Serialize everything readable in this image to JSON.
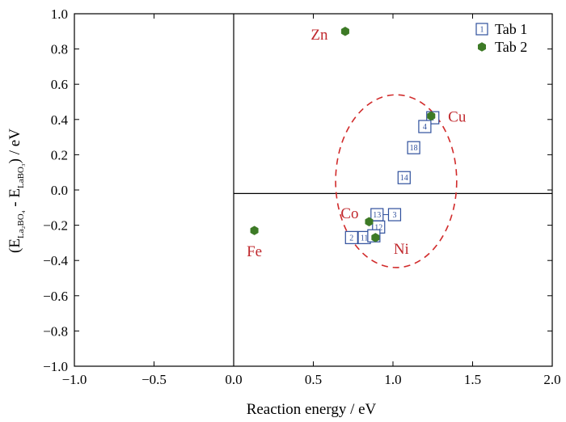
{
  "chart_data": {
    "type": "scatter",
    "title": "",
    "xlabel": "Reaction energy / eV",
    "ylabel": {
      "prefix": "(E",
      "sub1": "La₂BO₄",
      "mid": " - E",
      "sub2": "LaBO₃",
      "suffix": ") / eV"
    },
    "xlim": [
      -1.0,
      2.0
    ],
    "ylim": [
      -1.0,
      1.0
    ],
    "xticks": [
      -1.0,
      -0.5,
      0.0,
      0.5,
      1.0,
      1.5,
      2.0
    ],
    "xtick_labels": [
      "−1.0",
      "−0.5",
      "0.0",
      "0.5",
      "1.0",
      "1.5",
      "2.0"
    ],
    "yticks": [
      1.0,
      0.8,
      0.6,
      0.4,
      0.2,
      0.0,
      -0.2,
      -0.4,
      -0.6,
      -0.8,
      -1.0
    ],
    "ytick_labels": [
      "1.0",
      "0.8",
      "0.6",
      "0.4",
      "0.2",
      "0.0",
      "−0.2",
      "−0.4",
      "−0.6",
      "−0.8",
      "−1.0"
    ],
    "grid": false,
    "legend_position": "top-right",
    "reference_lines": {
      "x": 0.0,
      "y": -0.02
    },
    "series": [
      {
        "name": "Tab 1",
        "marker": "numbered-square",
        "color": "#2e4f9c",
        "points": [
          {
            "label": "1",
            "x": 1.25,
            "y": 0.41
          },
          {
            "label": "4",
            "x": 1.2,
            "y": 0.36
          },
          {
            "label": "18",
            "x": 1.13,
            "y": 0.24
          },
          {
            "label": "14",
            "x": 1.07,
            "y": 0.07
          },
          {
            "label": "13",
            "x": 0.9,
            "y": -0.14
          },
          {
            "label": "3",
            "x": 1.01,
            "y": -0.14
          },
          {
            "label": "12",
            "x": 0.91,
            "y": -0.21
          },
          {
            "label": "2",
            "x": 0.74,
            "y": -0.27
          },
          {
            "label": "11",
            "x": 0.82,
            "y": -0.27
          },
          {
            "label": "",
            "x": 0.88,
            "y": -0.26
          }
        ]
      },
      {
        "name": "Tab 2",
        "marker": "hexagon",
        "color": "#3d7a26",
        "points": [
          {
            "label": "Zn",
            "x": 0.7,
            "y": 0.9
          },
          {
            "label": "Cu",
            "x": 1.24,
            "y": 0.42
          },
          {
            "label": "Co",
            "x": 0.85,
            "y": -0.18
          },
          {
            "label": "Ni",
            "x": 0.89,
            "y": -0.27
          },
          {
            "label": "Fe",
            "x": 0.13,
            "y": -0.23
          }
        ]
      }
    ],
    "highlight_ellipse": {
      "cx": 1.02,
      "cy": 0.05,
      "rx": 0.38,
      "ry": 0.49,
      "color": "#d12b2b",
      "dashed": true
    }
  }
}
